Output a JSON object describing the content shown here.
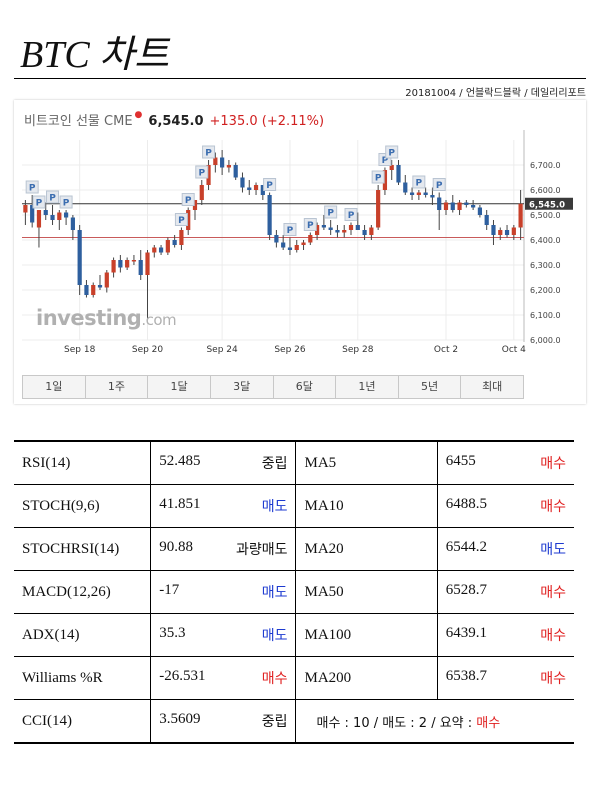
{
  "title": "BTC 차트",
  "source": "20181004 / 언블락드블락 / 데일리리포트",
  "chart_header": {
    "name": "비트코인 선물 CME",
    "price": "6,545.0",
    "change": "+135.0 (+2.11%)"
  },
  "logo": {
    "main": "investing",
    "suffix": ".com"
  },
  "chart_data": {
    "type": "candlestick",
    "title": "비트코인 선물 CME",
    "ylim": [
      6000,
      6800
    ],
    "yticks": [
      "6,000.0",
      "6,100.0",
      "6,200.0",
      "6,300.0",
      "6,400.0",
      "6,500.0",
      "6,600.0",
      "6,700.0"
    ],
    "xticks": [
      "Sep 18",
      "Sep 20",
      "Sep 24",
      "Sep 26",
      "Sep 28",
      "Oct 2",
      "Oct 4"
    ],
    "last_price_label": "6,545.0",
    "last_price": 6545,
    "prev_close_line": 6410,
    "candles": [
      {
        "o": 6510,
        "h": 6560,
        "l": 6460,
        "c": 6540
      },
      {
        "o": 6540,
        "h": 6580,
        "l": 6450,
        "c": 6470
      },
      {
        "o": 6450,
        "h": 6520,
        "l": 6370,
        "c": 6520
      },
      {
        "o": 6520,
        "h": 6550,
        "l": 6480,
        "c": 6500
      },
      {
        "o": 6500,
        "h": 6540,
        "l": 6460,
        "c": 6480
      },
      {
        "o": 6480,
        "h": 6520,
        "l": 6440,
        "c": 6510
      },
      {
        "o": 6510,
        "h": 6520,
        "l": 6460,
        "c": 6490
      },
      {
        "o": 6490,
        "h": 6500,
        "l": 6400,
        "c": 6440
      },
      {
        "o": 6440,
        "h": 6460,
        "l": 6180,
        "c": 6220
      },
      {
        "o": 6220,
        "h": 6240,
        "l": 6170,
        "c": 6180
      },
      {
        "o": 6180,
        "h": 6230,
        "l": 6170,
        "c": 6220
      },
      {
        "o": 6220,
        "h": 6260,
        "l": 6200,
        "c": 6210
      },
      {
        "o": 6210,
        "h": 6280,
        "l": 6190,
        "c": 6270
      },
      {
        "o": 6270,
        "h": 6330,
        "l": 6250,
        "c": 6320
      },
      {
        "o": 6320,
        "h": 6340,
        "l": 6270,
        "c": 6290
      },
      {
        "o": 6290,
        "h": 6330,
        "l": 6280,
        "c": 6320
      },
      {
        "o": 6320,
        "h": 6340,
        "l": 6300,
        "c": 6320
      },
      {
        "o": 6320,
        "h": 6360,
        "l": 6240,
        "c": 6260
      },
      {
        "o": 6260,
        "h": 6360,
        "l": 6080,
        "c": 6350
      },
      {
        "o": 6350,
        "h": 6380,
        "l": 6330,
        "c": 6370
      },
      {
        "o": 6370,
        "h": 6380,
        "l": 6340,
        "c": 6350
      },
      {
        "o": 6350,
        "h": 6410,
        "l": 6340,
        "c": 6400
      },
      {
        "o": 6400,
        "h": 6420,
        "l": 6370,
        "c": 6380
      },
      {
        "o": 6380,
        "h": 6450,
        "l": 6360,
        "c": 6440
      },
      {
        "o": 6440,
        "h": 6530,
        "l": 6420,
        "c": 6520
      },
      {
        "o": 6520,
        "h": 6560,
        "l": 6480,
        "c": 6560
      },
      {
        "o": 6560,
        "h": 6640,
        "l": 6540,
        "c": 6620
      },
      {
        "o": 6620,
        "h": 6720,
        "l": 6600,
        "c": 6700
      },
      {
        "o": 6700,
        "h": 6750,
        "l": 6670,
        "c": 6730
      },
      {
        "o": 6730,
        "h": 6760,
        "l": 6660,
        "c": 6690
      },
      {
        "o": 6690,
        "h": 6720,
        "l": 6670,
        "c": 6700
      },
      {
        "o": 6700,
        "h": 6710,
        "l": 6640,
        "c": 6650
      },
      {
        "o": 6650,
        "h": 6670,
        "l": 6590,
        "c": 6610
      },
      {
        "o": 6610,
        "h": 6640,
        "l": 6580,
        "c": 6600
      },
      {
        "o": 6600,
        "h": 6630,
        "l": 6580,
        "c": 6620
      },
      {
        "o": 6620,
        "h": 6620,
        "l": 6560,
        "c": 6580
      },
      {
        "o": 6580,
        "h": 6590,
        "l": 6400,
        "c": 6420
      },
      {
        "o": 6420,
        "h": 6440,
        "l": 6370,
        "c": 6390
      },
      {
        "o": 6390,
        "h": 6420,
        "l": 6360,
        "c": 6370
      },
      {
        "o": 6370,
        "h": 6410,
        "l": 6340,
        "c": 6360
      },
      {
        "o": 6360,
        "h": 6400,
        "l": 6350,
        "c": 6380
      },
      {
        "o": 6380,
        "h": 6400,
        "l": 6360,
        "c": 6390
      },
      {
        "o": 6390,
        "h": 6430,
        "l": 6380,
        "c": 6420
      },
      {
        "o": 6420,
        "h": 6470,
        "l": 6400,
        "c": 6460
      },
      {
        "o": 6460,
        "h": 6500,
        "l": 6440,
        "c": 6450
      },
      {
        "o": 6450,
        "h": 6480,
        "l": 6420,
        "c": 6440
      },
      {
        "o": 6440,
        "h": 6460,
        "l": 6410,
        "c": 6430
      },
      {
        "o": 6430,
        "h": 6460,
        "l": 6410,
        "c": 6440
      },
      {
        "o": 6440,
        "h": 6470,
        "l": 6420,
        "c": 6460
      },
      {
        "o": 6460,
        "h": 6510,
        "l": 6440,
        "c": 6440
      },
      {
        "o": 6440,
        "h": 6460,
        "l": 6400,
        "c": 6420
      },
      {
        "o": 6420,
        "h": 6460,
        "l": 6400,
        "c": 6450
      },
      {
        "o": 6450,
        "h": 6620,
        "l": 6440,
        "c": 6600
      },
      {
        "o": 6600,
        "h": 6690,
        "l": 6580,
        "c": 6680
      },
      {
        "o": 6680,
        "h": 6720,
        "l": 6640,
        "c": 6700
      },
      {
        "o": 6700,
        "h": 6720,
        "l": 6620,
        "c": 6630
      },
      {
        "o": 6630,
        "h": 6660,
        "l": 6580,
        "c": 6590
      },
      {
        "o": 6590,
        "h": 6610,
        "l": 6560,
        "c": 6580
      },
      {
        "o": 6580,
        "h": 6600,
        "l": 6560,
        "c": 6590
      },
      {
        "o": 6590,
        "h": 6610,
        "l": 6570,
        "c": 6580
      },
      {
        "o": 6580,
        "h": 6610,
        "l": 6540,
        "c": 6570
      },
      {
        "o": 6570,
        "h": 6590,
        "l": 6440,
        "c": 6520
      },
      {
        "o": 6520,
        "h": 6560,
        "l": 6500,
        "c": 6550
      },
      {
        "o": 6550,
        "h": 6580,
        "l": 6510,
        "c": 6520
      },
      {
        "o": 6520,
        "h": 6560,
        "l": 6500,
        "c": 6550
      },
      {
        "o": 6550,
        "h": 6560,
        "l": 6530,
        "c": 6540
      },
      {
        "o": 6540,
        "h": 6560,
        "l": 6520,
        "c": 6530
      },
      {
        "o": 6530,
        "h": 6540,
        "l": 6490,
        "c": 6500
      },
      {
        "o": 6500,
        "h": 6520,
        "l": 6440,
        "c": 6460
      },
      {
        "o": 6460,
        "h": 6480,
        "l": 6380,
        "c": 6420
      },
      {
        "o": 6420,
        "h": 6450,
        "l": 6400,
        "c": 6440
      },
      {
        "o": 6440,
        "h": 6460,
        "l": 6410,
        "c": 6420
      },
      {
        "o": 6420,
        "h": 6460,
        "l": 6400,
        "c": 6450
      },
      {
        "o": 6450,
        "h": 6600,
        "l": 6400,
        "c": 6545
      }
    ],
    "markers": [
      {
        "i": 1,
        "label": "P"
      },
      {
        "i": 2,
        "label": "P"
      },
      {
        "i": 4,
        "label": "P"
      },
      {
        "i": 6,
        "label": "P"
      },
      {
        "i": 23,
        "label": "P"
      },
      {
        "i": 24,
        "label": "P"
      },
      {
        "i": 26,
        "label": "P"
      },
      {
        "i": 27,
        "label": "P"
      },
      {
        "i": 36,
        "label": "P"
      },
      {
        "i": 39,
        "label": "P"
      },
      {
        "i": 42,
        "label": "P"
      },
      {
        "i": 45,
        "label": "P"
      },
      {
        "i": 48,
        "label": "P"
      },
      {
        "i": 52,
        "label": "P"
      },
      {
        "i": 53,
        "label": "P"
      },
      {
        "i": 54,
        "label": "P"
      },
      {
        "i": 58,
        "label": "P"
      },
      {
        "i": 61,
        "label": "P"
      }
    ]
  },
  "periods": [
    "1일",
    "1주",
    "1달",
    "3달",
    "6달",
    "1년",
    "5년",
    "최대"
  ],
  "indicators": [
    {
      "name": "RSI(14)",
      "value": "52.485",
      "signal": "중립",
      "signal_type": "neutral",
      "ma": "MA5",
      "ma_value": "6455",
      "ma_signal": "매수",
      "ma_signal_type": "buy"
    },
    {
      "name": "STOCH(9,6)",
      "value": "41.851",
      "signal": "매도",
      "signal_type": "sell",
      "ma": "MA10",
      "ma_value": "6488.5",
      "ma_signal": "매수",
      "ma_signal_type": "buy"
    },
    {
      "name": "STOCHRSI(14)",
      "value": "90.88",
      "signal": "과량매도",
      "signal_type": "neutral",
      "ma": "MA20",
      "ma_value": "6544.2",
      "ma_signal": "매도",
      "ma_signal_type": "sell"
    },
    {
      "name": "MACD(12,26)",
      "value": "-17",
      "signal": "매도",
      "signal_type": "sell",
      "ma": "MA50",
      "ma_value": "6528.7",
      "ma_signal": "매수",
      "ma_signal_type": "buy"
    },
    {
      "name": "ADX(14)",
      "value": "35.3",
      "signal": "매도",
      "signal_type": "sell",
      "ma": "MA100",
      "ma_value": "6439.1",
      "ma_signal": "매수",
      "ma_signal_type": "buy"
    },
    {
      "name": "Williams %R",
      "value": "-26.531",
      "signal": "매수",
      "signal_type": "buy",
      "ma": "MA200",
      "ma_value": "6538.7",
      "ma_signal": "매수",
      "ma_signal_type": "buy"
    }
  ],
  "cci": {
    "name": "CCI(14)",
    "value": "3.5609",
    "signal": "중립",
    "signal_type": "neutral"
  },
  "summary": {
    "text": "매수 : 10 / 매도 : 2 / 요약 : ",
    "verdict": "매수",
    "colors": {
      "buy": "#e02020",
      "sell": "#1c3ad0"
    }
  }
}
